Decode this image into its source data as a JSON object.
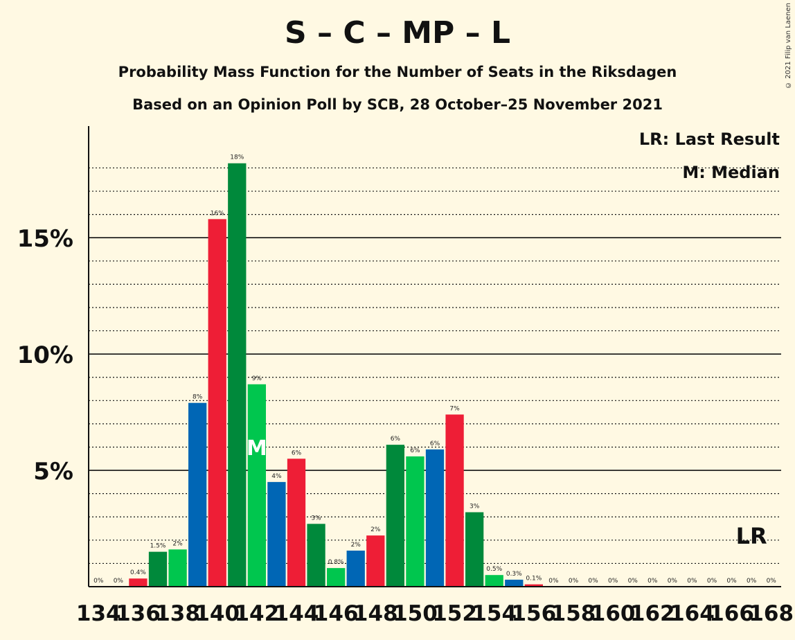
{
  "title": "S – C – MP – L",
  "subtitle1": "Probability Mass Function for the Number of Seats in the Riksdagen",
  "subtitle2": "Based on an Opinion Poll by SCB, 28 October–25 November 2021",
  "copyright": "© 2021 Filip van Laenen",
  "legend": {
    "last_result": "LR: Last Result",
    "median": "M: Median"
  },
  "colors": {
    "red": "#EE1E36",
    "dark_green": "#00893B",
    "light_green": "#00C64E",
    "blue": "#0066B5"
  },
  "chart_data": {
    "type": "bar",
    "x": [
      134,
      135,
      136,
      137,
      138,
      139,
      140,
      141,
      142,
      143,
      144,
      145,
      146,
      147,
      148,
      149,
      150,
      151,
      152,
      153,
      154,
      155,
      156,
      157,
      158,
      159,
      160,
      161,
      162,
      163,
      164,
      165,
      166,
      167,
      168
    ],
    "values": [
      0,
      0,
      0.35,
      1.5,
      1.6,
      7.9,
      15.8,
      18.2,
      8.7,
      4.5,
      5.5,
      2.7,
      0.8,
      1.55,
      2.2,
      6.1,
      5.6,
      5.9,
      7.4,
      3.2,
      0.5,
      0.3,
      0.1,
      0,
      0,
      0,
      0,
      0,
      0,
      0,
      0,
      0,
      0,
      0,
      0
    ],
    "labels": [
      "0%",
      "",
      "0.4%",
      "1.5%",
      "2%",
      "8%",
      "16%",
      "18%",
      "9%",
      "4%",
      "6%",
      "3%",
      "0.8%",
      "2%",
      "2%",
      "6%",
      "6%",
      "6%",
      "7%",
      "3%",
      "0.5%",
      "0.3%",
      "0.1%",
      "0%",
      "0%",
      "0%",
      "0%",
      "0%",
      "0%",
      "0%",
      "0%",
      "0%",
      "0%",
      "0%",
      "0%"
    ],
    "label_x": [
      134,
      null,
      136,
      137,
      138,
      139,
      140,
      141,
      142,
      143,
      144,
      145,
      146,
      147,
      148,
      149,
      150,
      151,
      152,
      153,
      154,
      155,
      156,
      157,
      158,
      159,
      160,
      161,
      162,
      163,
      164,
      165,
      166,
      167,
      168
    ],
    "colors": [
      "red",
      "dark_green",
      "red",
      "dark_green",
      "light_green",
      "blue",
      "red",
      "dark_green",
      "light_green",
      "blue",
      "red",
      "dark_green",
      "light_green",
      "blue",
      "red",
      "dark_green",
      "light_green",
      "blue",
      "red",
      "dark_green",
      "light_green",
      "blue",
      "red",
      "dark_green",
      "light_green",
      "blue",
      "red",
      "dark_green",
      "light_green",
      "blue",
      "red",
      "dark_green",
      "light_green",
      "blue",
      "red"
    ],
    "label_override": [
      {
        "x": 135,
        "label": "0%"
      }
    ],
    "x_ticks": [
      134,
      136,
      138,
      140,
      142,
      144,
      146,
      148,
      150,
      152,
      154,
      156,
      158,
      160,
      162,
      164,
      166,
      168
    ],
    "y_ticks": [
      5,
      10,
      15
    ],
    "y_tick_labels": [
      "5%",
      "10%",
      "15%"
    ],
    "ylim": [
      0,
      19.8
    ],
    "median_seat": 142,
    "median_marker": "M",
    "last_result_seat": 167,
    "last_result_marker": "LR"
  }
}
